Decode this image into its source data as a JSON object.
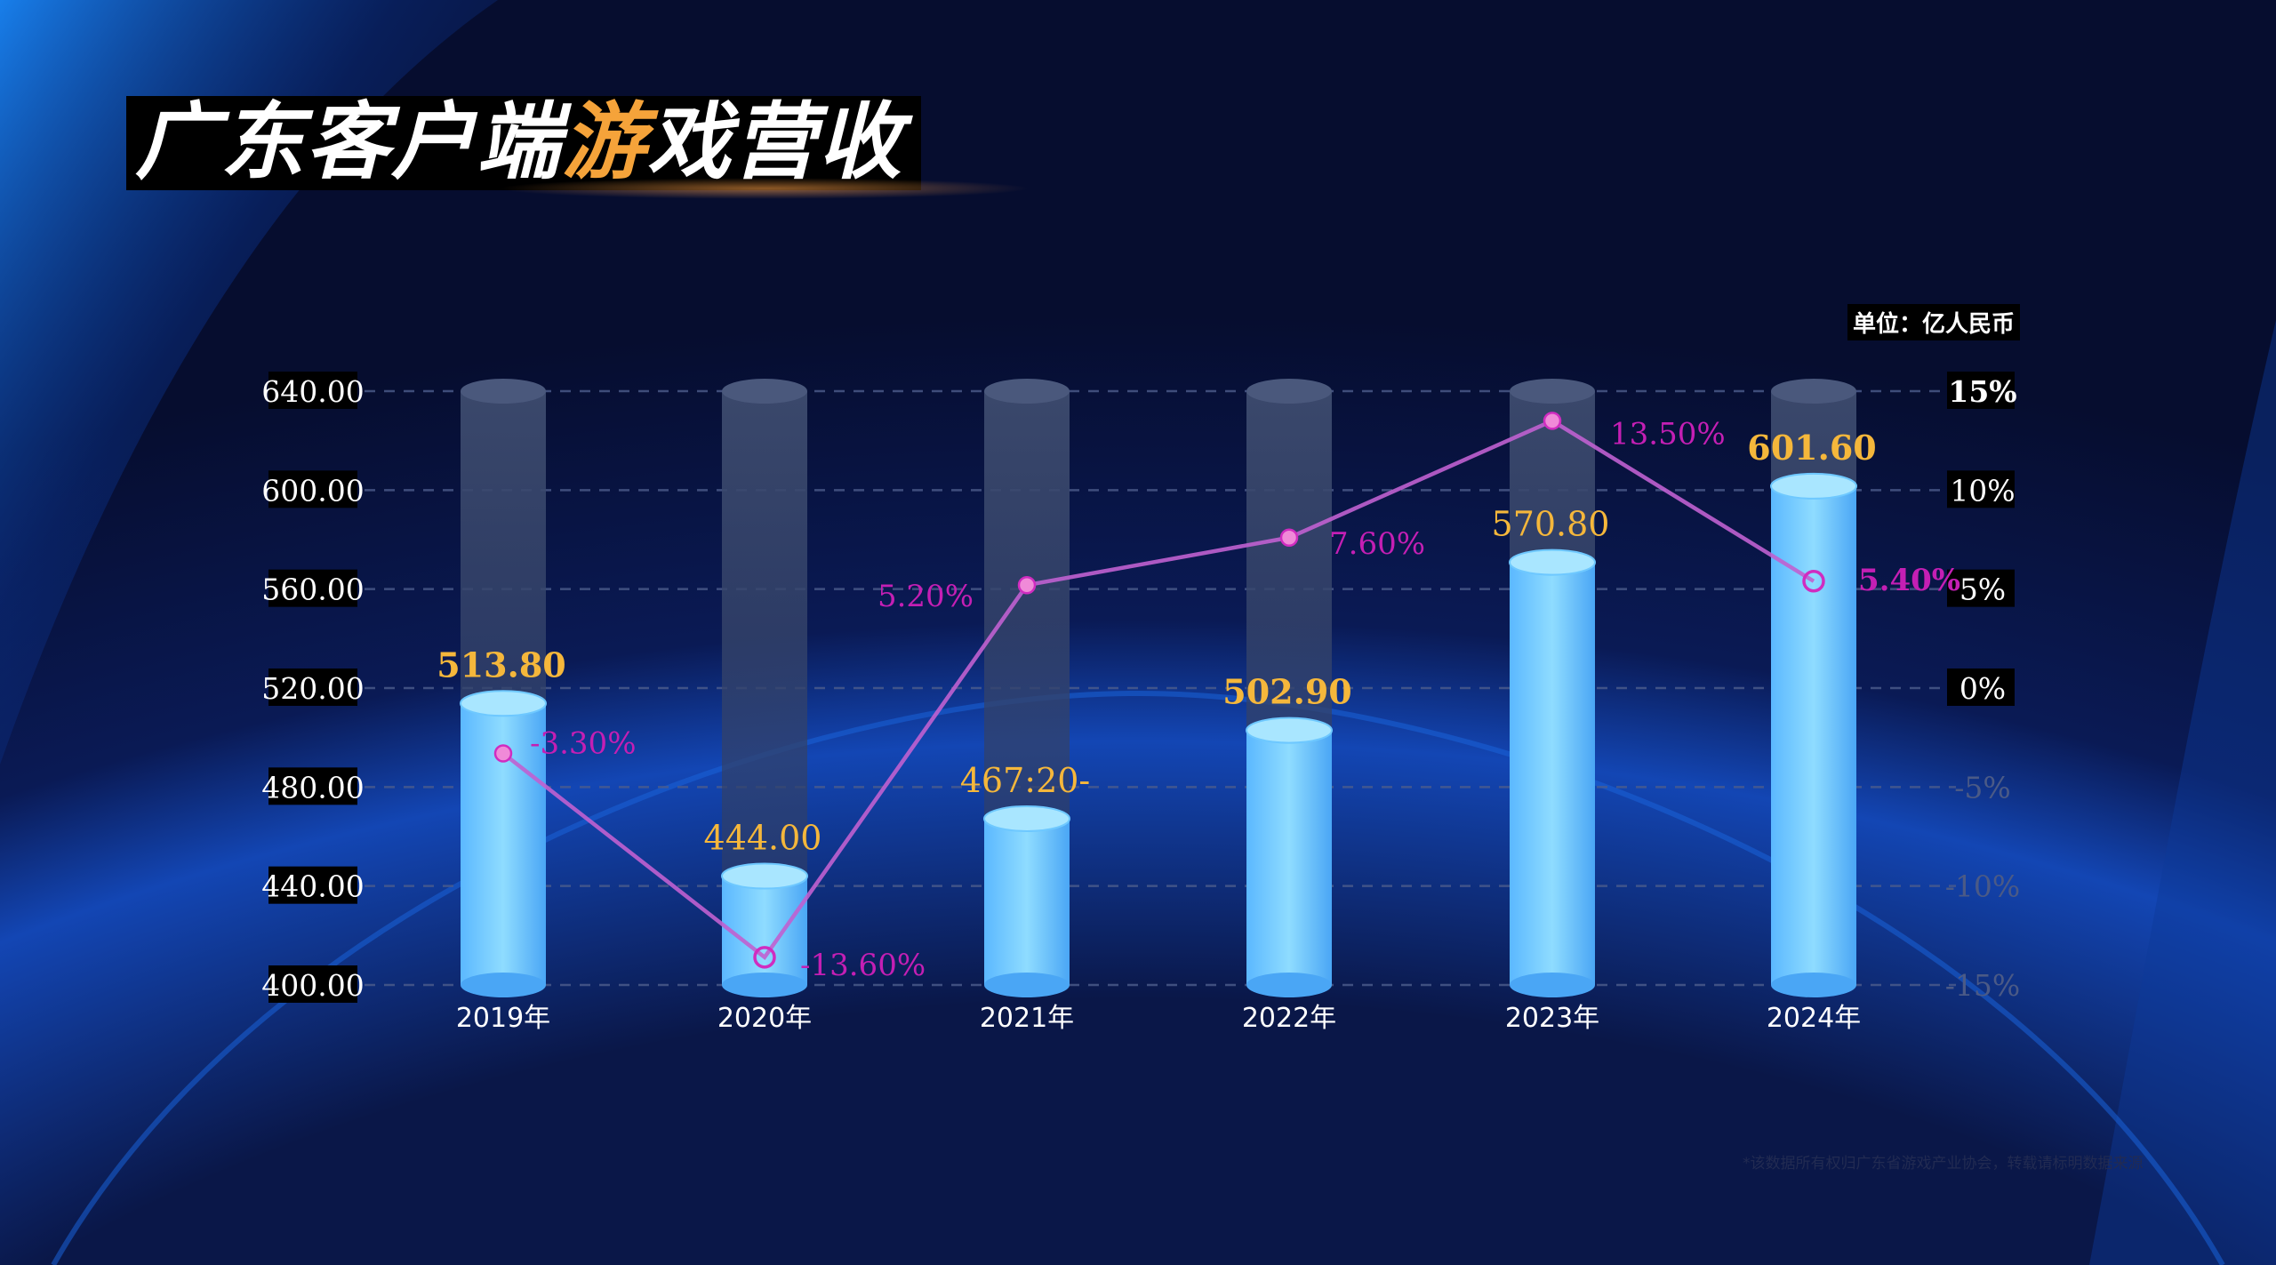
{
  "title": {
    "prefix": "广东客户端",
    "highlight": "游",
    "suffix": "戏营收"
  },
  "unit_label": "单位：亿人民币",
  "source_note": "*该数据所有权归广东省游戏产业协会，转载请标明数据来源",
  "colors": {
    "background": "#070f33",
    "bar": "#6ec8ff",
    "bar_track": "#3a4a72",
    "line": "#c060d0",
    "value_label": "#f5b73b",
    "percent_label": "#c41fb4",
    "highlight": "#f5a33a"
  },
  "chart_data": {
    "type": "bar",
    "categories": [
      "2019年",
      "2020年",
      "2021年",
      "2022年",
      "2023年",
      "2024年"
    ],
    "values": [
      513.8,
      444.0,
      467.2,
      502.9,
      570.8,
      601.6
    ],
    "value_labels": [
      "513.80",
      "444.00",
      "467:20-",
      "502.90",
      "570.80",
      "601.60"
    ],
    "ylim": [
      400,
      640
    ],
    "y_ticks": [
      "400.00",
      "440.00",
      "480.00",
      "520.00",
      "560.00",
      "600.00",
      "640.00"
    ],
    "grid": true,
    "line_series": {
      "type": "line",
      "axis": "right",
      "values": [
        -3.3,
        -13.6,
        5.2,
        7.6,
        13.5,
        5.4
      ],
      "labels": [
        "-3.30%",
        "-13.60%",
        "5.20%",
        "7.60%",
        "13.50%",
        "5.40%"
      ],
      "ylim": [
        -15,
        15
      ],
      "y_ticks": [
        "-15%",
        "-10%",
        "-5%",
        "0%",
        "5%",
        "10%",
        "15%"
      ]
    }
  }
}
